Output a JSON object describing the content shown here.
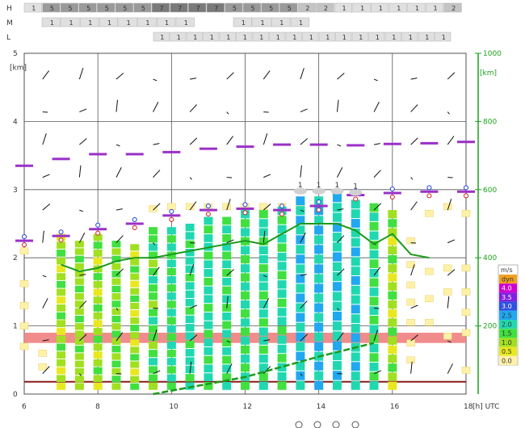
{
  "header_rows": {
    "H": {
      "label": "H",
      "values": [
        "1",
        "5",
        "5",
        "5",
        "5",
        "5",
        "5",
        "7",
        "7",
        "7",
        "7",
        "5",
        "5",
        "5",
        "5",
        "2",
        "2",
        "1",
        "1",
        "1",
        "1",
        "1",
        "1",
        "2"
      ]
    },
    "M": {
      "label": "M",
      "values": [
        "1",
        "1",
        "1",
        "1",
        "1",
        "1",
        "1",
        "1",
        "",
        "",
        "1",
        "1",
        "1",
        "1"
      ]
    },
    "L": {
      "label": "L",
      "values": [
        "1",
        "1",
        "1",
        "1",
        "1",
        "1",
        "1",
        "1",
        "1",
        "1",
        "1",
        "1",
        "1",
        "1",
        "1",
        "1",
        "1",
        "1"
      ]
    }
  },
  "colors": {
    "grid": "#222222",
    "green_line": "#1a9a1a",
    "purple_bar": "#9b30c8",
    "red_band": "#f08080",
    "dark_red_line": "#8b1a1a",
    "pale_yellow": "#fff1a8",
    "pale_yellow_border": "#e6cf66"
  },
  "chart_data": {
    "type": "heatmap",
    "title": "",
    "x_unit": "[h] UTC",
    "y_left_unit": "[km]",
    "y_right_unit": "[km]",
    "xlim": [
      6,
      18
    ],
    "ylim_left": [
      0,
      5
    ],
    "ylim_right": [
      0,
      1000
    ],
    "x_ticks": [
      "6",
      "8",
      "10",
      "12",
      "14",
      "16",
      "18"
    ],
    "y_left_ticks": [
      "0",
      "1",
      "2",
      "3",
      "4",
      "5"
    ],
    "y_right_ticks": [
      "200",
      "400",
      "600",
      "800",
      "1000"
    ],
    "legend_title": "m/s",
    "legend": [
      {
        "label": "dyn",
        "color": "#f0a020"
      },
      {
        "label": "4.0",
        "color": "#d000d0"
      },
      {
        "label": "3.5",
        "color": "#8020e0"
      },
      {
        "label": "3.0",
        "color": "#3050e0"
      },
      {
        "label": "2.5",
        "color": "#20a8f0"
      },
      {
        "label": "2.0",
        "color": "#20d8b0"
      },
      {
        "label": "1.5",
        "color": "#40e040"
      },
      {
        "label": "1.0",
        "color": "#a0e020"
      },
      {
        "label": "0.5",
        "color": "#e8e820"
      },
      {
        "label": "0.0",
        "color": "#fff1a8"
      }
    ],
    "columns": [
      {
        "x": 7.0,
        "top": 2.35,
        "colors": [
          "#e8e820",
          "#a0e020",
          "#40e040",
          "#a0e020",
          "#e8e820",
          "#a0e020",
          "#40e040",
          "#a0e020",
          "#e8e820",
          "#a0e020",
          "#40e040",
          "#a0e020",
          "#e8e820",
          "#a0e020",
          "#40e040",
          "#a0e020",
          "#a0e020",
          "#e8e820",
          "#a0e020",
          "#e8e820"
        ]
      },
      {
        "x": 7.5,
        "top": 2.25,
        "colors": [
          "#a0e020",
          "#a0e020",
          "#40e040",
          "#a0e020",
          "#a0e020",
          "#a0e020",
          "#40e040",
          "#a0e020",
          "#a0e020",
          "#a0e020",
          "#40e040",
          "#a0e020",
          "#a0e020",
          "#a0e020",
          "#40e040",
          "#a0e020",
          "#a0e020",
          "#a0e020",
          "#a0e020",
          "#a0e020"
        ]
      },
      {
        "x": 8.0,
        "top": 2.35,
        "colors": [
          "#a0e020",
          "#40e040",
          "#a0e020",
          "#e8e820",
          "#a0e020",
          "#40e040",
          "#a0e020",
          "#e8e820",
          "#a0e020",
          "#40e040",
          "#a0e020",
          "#e8e820",
          "#a0e020",
          "#40e040",
          "#a0e020",
          "#e8e820",
          "#a0e020",
          "#40e040",
          "#a0e020",
          "#e8e820"
        ]
      },
      {
        "x": 8.5,
        "top": 2.25,
        "colors": [
          "#40e040",
          "#a0e020",
          "#40e040",
          "#a0e020",
          "#40e040",
          "#a0e020",
          "#40e040",
          "#a0e020",
          "#40e040",
          "#a0e020",
          "#40e040",
          "#a0e020",
          "#40e040",
          "#a0e020",
          "#40e040",
          "#a0e020",
          "#40e040",
          "#a0e020",
          "#40e040",
          "#a0e020"
        ]
      },
      {
        "x": 9.0,
        "top": 2.2,
        "colors": [
          "#a0e020",
          "#e8e820",
          "#a0e020",
          "#40e040",
          "#a0e020",
          "#e8e820",
          "#a0e020",
          "#40e040",
          "#a0e020",
          "#e8e820",
          "#a0e020",
          "#40e040",
          "#a0e020",
          "#e8e820",
          "#a0e020",
          "#40e040",
          "#a0e020",
          "#e8e820",
          "#a0e020",
          "#40e040"
        ]
      },
      {
        "x": 9.5,
        "top": 2.45,
        "colors": [
          "#40e040",
          "#40e040",
          "#20d8b0",
          "#40e040",
          "#a0e020",
          "#40e040",
          "#20d8b0",
          "#40e040",
          "#40e040",
          "#a0e020",
          "#40e040",
          "#20d8b0",
          "#40e040",
          "#40e040",
          "#a0e020",
          "#40e040",
          "#20d8b0",
          "#40e040",
          "#40e040",
          "#a0e020"
        ]
      },
      {
        "x": 10.0,
        "top": 2.45,
        "colors": [
          "#20d8b0",
          "#40e040",
          "#20d8b0",
          "#40e040",
          "#20d8b0",
          "#40e040",
          "#20d8b0",
          "#40e040",
          "#20d8b0",
          "#40e040",
          "#20d8b0",
          "#40e040",
          "#20d8b0",
          "#40e040",
          "#20d8b0",
          "#40e040",
          "#20d8b0",
          "#40e040",
          "#20d8b0",
          "#40e040"
        ]
      },
      {
        "x": 10.5,
        "top": 2.5,
        "colors": [
          "#20d8b0",
          "#20d8b0",
          "#40e040",
          "#20d8b0",
          "#20d8b0",
          "#20d8b0",
          "#40e040",
          "#20d8b0",
          "#20d8b0",
          "#20d8b0",
          "#40e040",
          "#20d8b0",
          "#20d8b0",
          "#20d8b0",
          "#40e040",
          "#20d8b0",
          "#20d8b0",
          "#20d8b0",
          "#40e040",
          "#20d8b0"
        ]
      },
      {
        "x": 11.0,
        "top": 2.6,
        "colors": [
          "#20d8b0",
          "#40e040",
          "#20d8b0",
          "#20d8b0",
          "#40e040",
          "#20d8b0",
          "#20d8b0",
          "#40e040",
          "#20d8b0",
          "#20d8b0",
          "#40e040",
          "#20d8b0",
          "#20d8b0",
          "#40e040",
          "#20d8b0",
          "#20d8b0",
          "#40e040",
          "#20d8b0",
          "#20d8b0",
          "#40e040"
        ]
      },
      {
        "x": 11.5,
        "top": 2.6,
        "colors": [
          "#40e040",
          "#20d8b0",
          "#40e040",
          "#20d8b0",
          "#40e040",
          "#20d8b0",
          "#40e040",
          "#20d8b0",
          "#40e040",
          "#20d8b0",
          "#40e040",
          "#20d8b0",
          "#40e040",
          "#20d8b0",
          "#40e040",
          "#20d8b0",
          "#40e040",
          "#20d8b0",
          "#40e040",
          "#20d8b0"
        ]
      },
      {
        "x": 12.0,
        "top": 2.7,
        "colors": [
          "#20d8b0",
          "#40e040",
          "#20d8b0",
          "#40e040",
          "#20d8b0",
          "#40e040",
          "#20d8b0",
          "#40e040",
          "#20d8b0",
          "#40e040",
          "#20d8b0",
          "#40e040",
          "#20d8b0",
          "#40e040",
          "#20d8b0",
          "#40e040",
          "#20d8b0",
          "#40e040",
          "#20d8b0",
          "#40e040"
        ]
      },
      {
        "x": 12.5,
        "top": 2.7,
        "colors": [
          "#40e040",
          "#20d8b0",
          "#20d8b0",
          "#40e040",
          "#20d8b0",
          "#20d8b0",
          "#40e040",
          "#20d8b0",
          "#20d8b0",
          "#40e040",
          "#20d8b0",
          "#20d8b0",
          "#40e040",
          "#20d8b0",
          "#20d8b0",
          "#40e040",
          "#20d8b0",
          "#20d8b0",
          "#40e040",
          "#20d8b0"
        ]
      },
      {
        "x": 13.0,
        "top": 2.75,
        "colors": [
          "#20d8b0",
          "#40e040",
          "#20d8b0",
          "#20d8b0",
          "#40e040",
          "#20d8b0",
          "#20d8b0",
          "#40e040",
          "#20d8b0",
          "#20d8b0",
          "#40e040",
          "#20d8b0",
          "#20d8b0",
          "#40e040",
          "#20d8b0",
          "#20d8b0",
          "#40e040",
          "#20d8b0",
          "#20d8b0",
          "#40e040"
        ]
      },
      {
        "x": 13.5,
        "top": 2.9,
        "colors": [
          "#20a8f0",
          "#20d8b0",
          "#20a8f0",
          "#20d8b0",
          "#20a8f0",
          "#20d8b0",
          "#20a8f0",
          "#20d8b0",
          "#20a8f0",
          "#20d8b0",
          "#20a8f0",
          "#20d8b0",
          "#20a8f0",
          "#20d8b0",
          "#20a8f0",
          "#20d8b0",
          "#20a8f0",
          "#20d8b0",
          "#20a8f0",
          "#20d8b0"
        ]
      },
      {
        "x": 14.0,
        "top": 2.9,
        "colors": [
          "#20d8b0",
          "#20a8f0",
          "#20d8b0",
          "#20a8f0",
          "#20d8b0",
          "#20a8f0",
          "#20d8b0",
          "#20a8f0",
          "#20d8b0",
          "#20a8f0",
          "#20d8b0",
          "#20a8f0",
          "#20d8b0",
          "#20a8f0",
          "#20d8b0",
          "#20a8f0",
          "#20d8b0",
          "#20a8f0",
          "#20d8b0",
          "#20a8f0"
        ]
      },
      {
        "x": 14.5,
        "top": 2.95,
        "colors": [
          "#20a8f0",
          "#20d8b0",
          "#20d8b0",
          "#20a8f0",
          "#20d8b0",
          "#20d8b0",
          "#20a8f0",
          "#20d8b0",
          "#20d8b0",
          "#20a8f0",
          "#20d8b0",
          "#20d8b0",
          "#20a8f0",
          "#20d8b0",
          "#20d8b0",
          "#20a8f0",
          "#20d8b0",
          "#20d8b0",
          "#20a8f0",
          "#20d8b0"
        ]
      },
      {
        "x": 15.0,
        "top": 2.85,
        "colors": [
          "#20d8b0",
          "#20d8b0",
          "#20a8f0",
          "#20d8b0",
          "#20d8b0",
          "#20a8f0",
          "#20d8b0",
          "#20d8b0",
          "#20a8f0",
          "#20d8b0",
          "#20d8b0",
          "#20a8f0",
          "#20d8b0",
          "#20d8b0",
          "#20a8f0",
          "#20d8b0",
          "#20d8b0",
          "#20a8f0",
          "#20d8b0",
          "#20d8b0"
        ]
      },
      {
        "x": 15.5,
        "top": 2.8,
        "colors": [
          "#40e040",
          "#20d8b0",
          "#40e040",
          "#20d8b0",
          "#40e040",
          "#20d8b0",
          "#40e040",
          "#20d8b0",
          "#40e040",
          "#20d8b0",
          "#40e040",
          "#20d8b0",
          "#40e040",
          "#20d8b0",
          "#40e040",
          "#20d8b0",
          "#40e040",
          "#20d8b0",
          "#40e040",
          "#20d8b0"
        ]
      },
      {
        "x": 16.0,
        "top": 2.7,
        "colors": [
          "#a0e020",
          "#40e040",
          "#a0e020",
          "#e8e820",
          "#a0e020",
          "#40e040",
          "#a0e020",
          "#e8e820",
          "#a0e020",
          "#40e040",
          "#a0e020",
          "#e8e820",
          "#a0e020",
          "#40e040",
          "#a0e020",
          "#e8e820",
          "#a0e020",
          "#40e040",
          "#a0e020",
          "#e8e820"
        ]
      }
    ],
    "green_line": {
      "name": "",
      "points": [
        [
          7.0,
          1.9
        ],
        [
          7.5,
          1.8
        ],
        [
          8.0,
          1.85
        ],
        [
          8.5,
          1.95
        ],
        [
          9.0,
          2.0
        ],
        [
          9.5,
          2.0
        ],
        [
          10.0,
          2.05
        ],
        [
          10.5,
          2.1
        ],
        [
          11.0,
          2.15
        ],
        [
          11.5,
          2.2
        ],
        [
          12.0,
          2.25
        ],
        [
          12.5,
          2.2
        ],
        [
          13.0,
          2.35
        ],
        [
          13.5,
          2.5
        ],
        [
          14.0,
          2.5
        ],
        [
          14.5,
          2.5
        ],
        [
          15.0,
          2.4
        ],
        [
          15.5,
          2.2
        ],
        [
          16.0,
          2.35
        ],
        [
          16.5,
          2.05
        ],
        [
          17.0,
          2.0
        ]
      ]
    },
    "green_ground_line": {
      "name": "",
      "points": [
        [
          9.5,
          0.0
        ],
        [
          12.0,
          0.25
        ],
        [
          14.0,
          0.55
        ],
        [
          15.5,
          0.75
        ]
      ]
    },
    "purple_markers": [
      {
        "x": 6.0,
        "y": 3.35
      },
      {
        "x": 7.0,
        "y": 3.45
      },
      {
        "x": 8.0,
        "y": 3.52
      },
      {
        "x": 9.0,
        "y": 3.52
      },
      {
        "x": 10.0,
        "y": 3.55
      },
      {
        "x": 11.0,
        "y": 3.6
      },
      {
        "x": 12.0,
        "y": 3.63
      },
      {
        "x": 13.0,
        "y": 3.66
      },
      {
        "x": 14.0,
        "y": 3.66
      },
      {
        "x": 15.0,
        "y": 3.65
      },
      {
        "x": 16.0,
        "y": 3.67
      },
      {
        "x": 17.0,
        "y": 3.68
      },
      {
        "x": 18.0,
        "y": 3.7
      },
      {
        "x": 6.0,
        "y": 2.25
      },
      {
        "x": 7.0,
        "y": 2.32
      },
      {
        "x": 8.0,
        "y": 2.42
      },
      {
        "x": 9.0,
        "y": 2.5
      },
      {
        "x": 10.0,
        "y": 2.62
      },
      {
        "x": 11.0,
        "y": 2.7
      },
      {
        "x": 12.0,
        "y": 2.72
      },
      {
        "x": 13.0,
        "y": 2.7
      },
      {
        "x": 14.0,
        "y": 2.76
      },
      {
        "x": 15.0,
        "y": 2.92
      },
      {
        "x": 16.0,
        "y": 2.95
      },
      {
        "x": 17.0,
        "y": 2.97
      },
      {
        "x": 18.0,
        "y": 2.97
      }
    ],
    "red_band": {
      "y_low": 0.75,
      "y_high": 0.9
    },
    "dark_red_line": {
      "y": 0.18
    },
    "pale_yellow_cells": [
      [
        6.0,
        1.62
      ],
      [
        6.0,
        1.3
      ],
      [
        6.0,
        1.0
      ],
      [
        6.0,
        0.7
      ],
      [
        6.0,
        2.1
      ],
      [
        7.0,
        1.1
      ],
      [
        9.5,
        2.72
      ],
      [
        10.0,
        2.75
      ],
      [
        10.5,
        2.75
      ],
      [
        11.0,
        2.75
      ],
      [
        11.5,
        2.75
      ],
      [
        12.0,
        2.75
      ],
      [
        12.5,
        2.75
      ],
      [
        13.0,
        2.75
      ],
      [
        13.5,
        2.75
      ],
      [
        15.5,
        2.7
      ],
      [
        16.5,
        2.25
      ],
      [
        16.5,
        1.9
      ],
      [
        16.5,
        1.6
      ],
      [
        16.5,
        1.35
      ],
      [
        16.5,
        1.05
      ],
      [
        16.5,
        0.75
      ],
      [
        16.5,
        0.5
      ],
      [
        17.0,
        2.65
      ],
      [
        17.0,
        1.8
      ],
      [
        17.0,
        1.4
      ],
      [
        17.0,
        1.05
      ],
      [
        17.5,
        2.75
      ],
      [
        17.5,
        1.85
      ],
      [
        17.5,
        1.5
      ],
      [
        17.5,
        0.85
      ],
      [
        18.0,
        2.65
      ],
      [
        18.0,
        1.85
      ],
      [
        18.0,
        1.5
      ],
      [
        18.0,
        1.2
      ],
      [
        18.0,
        0.9
      ],
      [
        18.0,
        0.35
      ],
      [
        6.5,
        0.6
      ],
      [
        6.5,
        0.4
      ]
    ],
    "cloud_labels": [
      {
        "x": 13.5,
        "y": 3.0,
        "label": "1"
      },
      {
        "x": 14.0,
        "y": 3.0,
        "label": "1"
      },
      {
        "x": 14.5,
        "y": 3.0,
        "label": "1"
      },
      {
        "x": 15.0,
        "y": 2.98,
        "label": "1"
      }
    ]
  }
}
